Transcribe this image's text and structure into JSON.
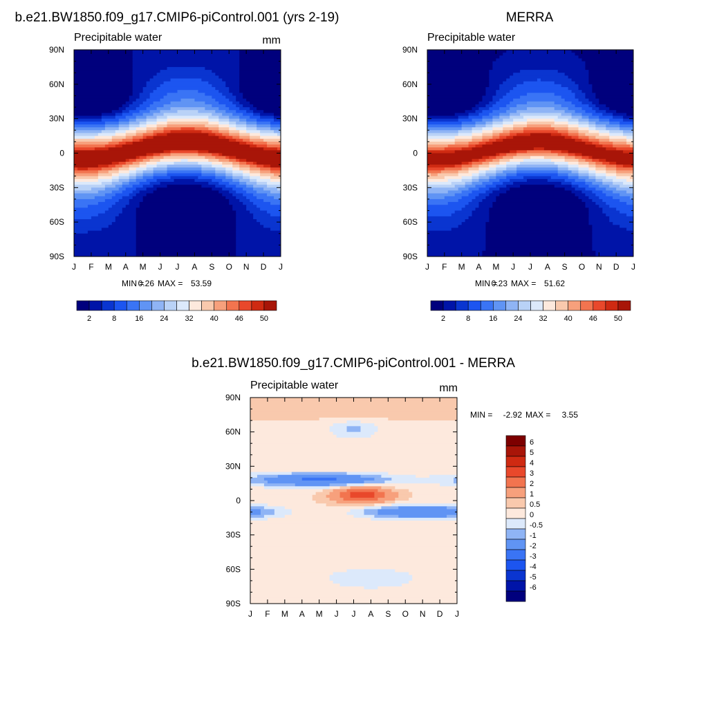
{
  "chart_data": [
    {
      "type": "heatmap",
      "title": "b.e21.BW1850.f09_g17.CMIP6-piControl.001 (yrs 2-19)",
      "variable": "Precipitable water",
      "units": "mm",
      "x_ticks": [
        "J",
        "F",
        "M",
        "A",
        "M",
        "J",
        "J",
        "A",
        "S",
        "O",
        "N",
        "D",
        "J"
      ],
      "y_ticks": [
        "90N",
        "60N",
        "30N",
        "0",
        "30S",
        "60S",
        "90S"
      ],
      "ylim": [
        -90,
        90
      ],
      "min_label": "MIN =",
      "max_label": "MAX =",
      "min_value": "0.26",
      "max_value": "53.59",
      "levels": [
        2,
        5,
        8,
        12,
        16,
        20,
        24,
        28,
        32,
        36,
        40,
        43,
        46,
        48,
        50
      ],
      "colorbar_labels": [
        "2",
        "8",
        "16",
        "24",
        "32",
        "40",
        "46",
        "50"
      ]
    },
    {
      "type": "heatmap",
      "title": "MERRA",
      "variable": "Precipitable water",
      "units": "",
      "x_ticks": [
        "J",
        "F",
        "M",
        "A",
        "M",
        "J",
        "J",
        "A",
        "S",
        "O",
        "N",
        "D",
        "J"
      ],
      "y_ticks": [
        "90N",
        "60N",
        "30N",
        "0",
        "30S",
        "60S",
        "90S"
      ],
      "ylim": [
        -90,
        90
      ],
      "min_label": "MIN =",
      "max_label": "MAX =",
      "min_value": "0.23",
      "max_value": "51.62",
      "levels": [
        2,
        5,
        8,
        12,
        16,
        20,
        24,
        28,
        32,
        36,
        40,
        43,
        46,
        48,
        50
      ],
      "colorbar_labels": [
        "2",
        "8",
        "16",
        "24",
        "32",
        "40",
        "46",
        "50"
      ]
    },
    {
      "type": "heatmap",
      "title": "b.e21.BW1850.f09_g17.CMIP6-piControl.001 - MERRA",
      "variable": "Precipitable water",
      "units": "mm",
      "x_ticks": [
        "J",
        "F",
        "M",
        "A",
        "M",
        "J",
        "J",
        "A",
        "S",
        "O",
        "N",
        "D",
        "J"
      ],
      "y_ticks": [
        "90N",
        "60N",
        "30N",
        "0",
        "30S",
        "60S",
        "90S"
      ],
      "ylim": [
        -90,
        90
      ],
      "min_label": "MIN =",
      "max_label": "MAX =",
      "min_value": "-2.92",
      "max_value": "3.55",
      "levels": [
        -6,
        -5,
        -4,
        -3,
        -2,
        -1,
        -0.5,
        0,
        0.5,
        1,
        2,
        3,
        4,
        5,
        6
      ],
      "colorbar_labels": [
        "6",
        "5",
        "4",
        "3",
        "2",
        "1",
        "0.5",
        "0",
        "-0.5",
        "-1",
        "-2",
        "-3",
        "-4",
        "-5",
        "-6"
      ]
    }
  ],
  "colors": {
    "blue_red_ramp": [
      "#00007d",
      "#0014a8",
      "#0a35d0",
      "#1c55f0",
      "#3a74f5",
      "#6094f4",
      "#8fb4f5",
      "#b9d2f7",
      "#dce9fb",
      "#fde9dd",
      "#f9c9ad",
      "#f7a07c",
      "#f2744f",
      "#e9482b",
      "#cf2a12",
      "#a81508",
      "#7d0000"
    ]
  }
}
